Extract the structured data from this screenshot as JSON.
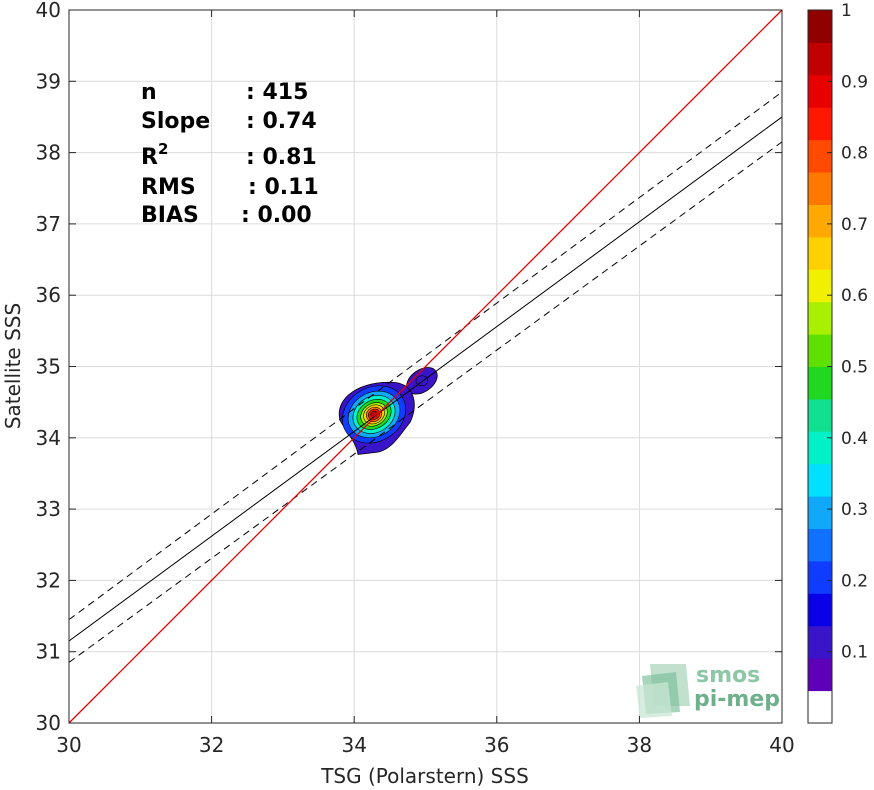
{
  "chart_data": {
    "type": "scatter",
    "subtype": "2D density contour with regression",
    "xlabel": "TSG (Polarstern) SSS",
    "ylabel": "Satellite SSS",
    "xlim": [
      30,
      40
    ],
    "ylim": [
      30,
      40
    ],
    "xticks": [
      "30",
      "32",
      "34",
      "36",
      "38",
      "40"
    ],
    "yticks": [
      "30",
      "31",
      "32",
      "33",
      "34",
      "35",
      "36",
      "37",
      "38",
      "39",
      "40"
    ],
    "grid": true,
    "stats": [
      {
        "label": "n",
        "sep": ":",
        "value": "415"
      },
      {
        "label": "Slope",
        "sep": ":",
        "value": "0.74"
      },
      {
        "label": "R",
        "sup": "2",
        "sep": ":",
        "value": "0.81"
      },
      {
        "label": "RMS",
        "sep": ":",
        "value": "0.11"
      },
      {
        "label": "BIAS",
        "sep": ":",
        "value": "0.00"
      }
    ],
    "identity_line": {
      "x": [
        30,
        40
      ],
      "y": [
        30,
        40
      ],
      "color": "#e00000"
    },
    "regression": {
      "slope": 0.74,
      "x": [
        30,
        40
      ],
      "y": [
        31.15,
        38.5
      ]
    },
    "confidence_bounds": [
      {
        "x": [
          30,
          40
        ],
        "y": [
          31.45,
          38.85
        ]
      },
      {
        "x": [
          30,
          40
        ],
        "y": [
          30.85,
          38.15
        ]
      }
    ],
    "density_peak": {
      "x": 34.25,
      "y": 34.3
    },
    "secondary_lobe": {
      "x": 34.95,
      "y": 34.8
    },
    "colorbar": {
      "min": 0,
      "max": 1,
      "ticks": [
        "0.1",
        "0.2",
        "0.3",
        "0.4",
        "0.5",
        "0.6",
        "0.7",
        "0.8",
        "0.9",
        "1"
      ],
      "colors": [
        "#ffffff",
        "#5d00b8",
        "#3a14c8",
        "#0a00e8",
        "#0f3cff",
        "#1070ff",
        "#10a8f8",
        "#00e0ff",
        "#00f0c8",
        "#10e090",
        "#20d820",
        "#60e000",
        "#a8f000",
        "#f0f000",
        "#ffd000",
        "#ffa800",
        "#ff7800",
        "#ff4a00",
        "#ff1800",
        "#e80000",
        "#c00000",
        "#900000"
      ]
    }
  },
  "logo": {
    "line1": "smos",
    "line2": "pi-mep"
  }
}
